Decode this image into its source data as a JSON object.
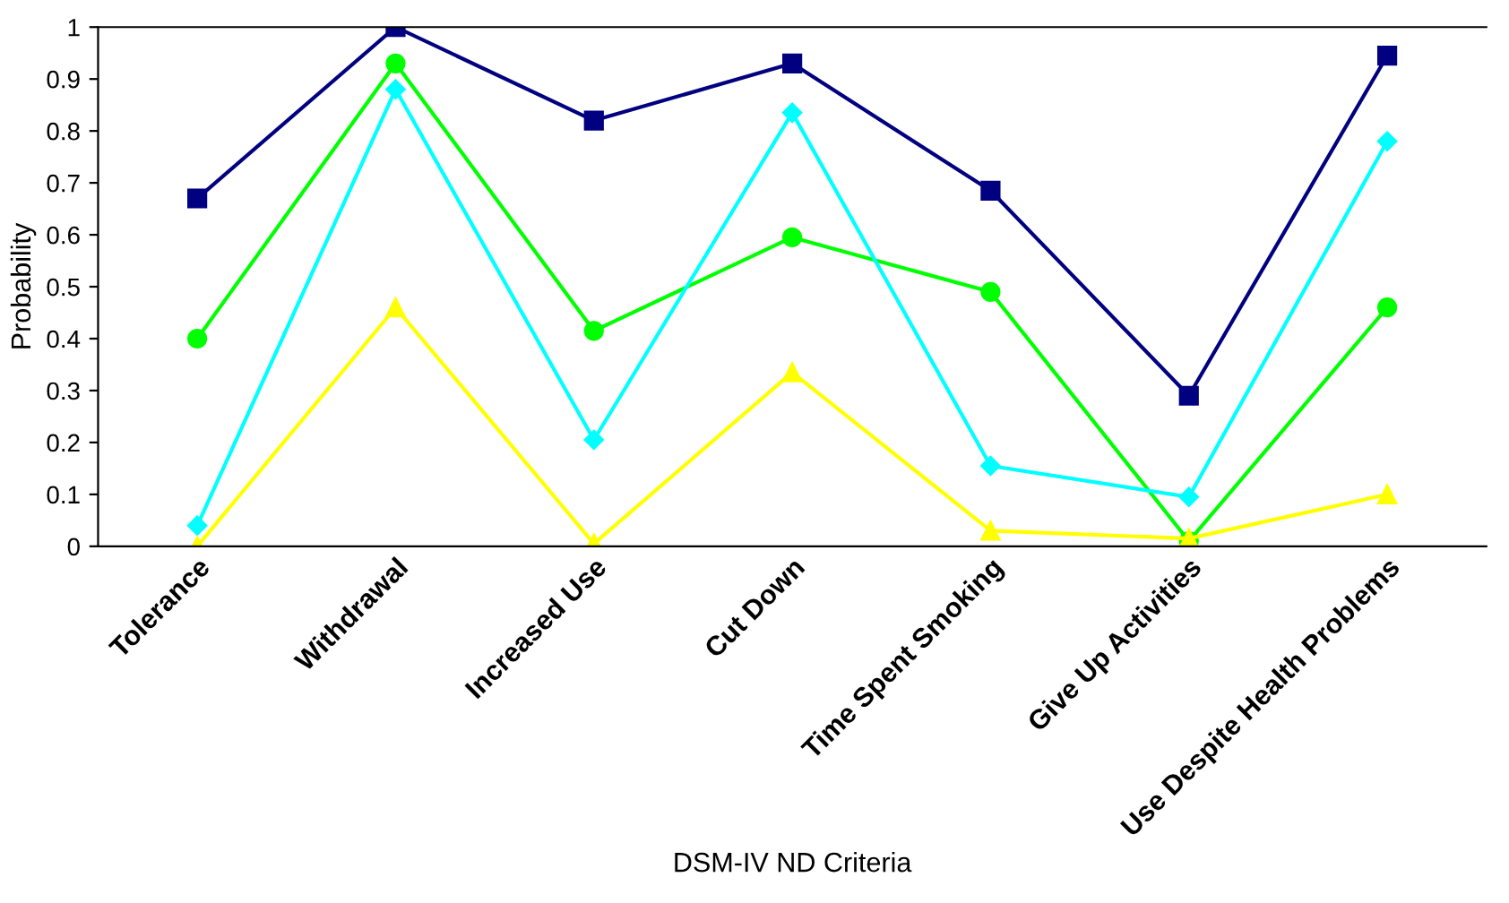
{
  "chart_data": {
    "type": "line",
    "xlabel": "DSM-IV ND Criteria",
    "ylabel": "Probability",
    "categories": [
      "Tolerance",
      "Withdrawal",
      "Increased Use",
      "Cut Down",
      "Time Spent Smoking",
      "Give Up Activities",
      "Use Despite Health Problems"
    ],
    "ylim": [
      0,
      1
    ],
    "yticks": [
      0,
      0.1,
      0.2,
      0.3,
      0.4,
      0.5,
      0.6,
      0.7,
      0.8,
      0.9,
      1
    ],
    "grid": false,
    "legend": false,
    "series": [
      {
        "color": "#000080",
        "marker": "square",
        "values": [
          0.67,
          1.0,
          0.82,
          0.93,
          0.685,
          0.29,
          0.945
        ]
      },
      {
        "color": "#00ff00",
        "marker": "circle",
        "values": [
          0.4,
          0.93,
          0.415,
          0.595,
          0.49,
          0.01,
          0.46
        ]
      },
      {
        "color": "#00ffff",
        "marker": "diamond",
        "values": [
          0.04,
          0.88,
          0.205,
          0.835,
          0.155,
          0.095,
          0.78
        ]
      },
      {
        "color": "#ffff00",
        "marker": "triangle",
        "values": [
          0.0,
          0.46,
          0.005,
          0.335,
          0.03,
          0.015,
          0.1
        ]
      }
    ]
  }
}
